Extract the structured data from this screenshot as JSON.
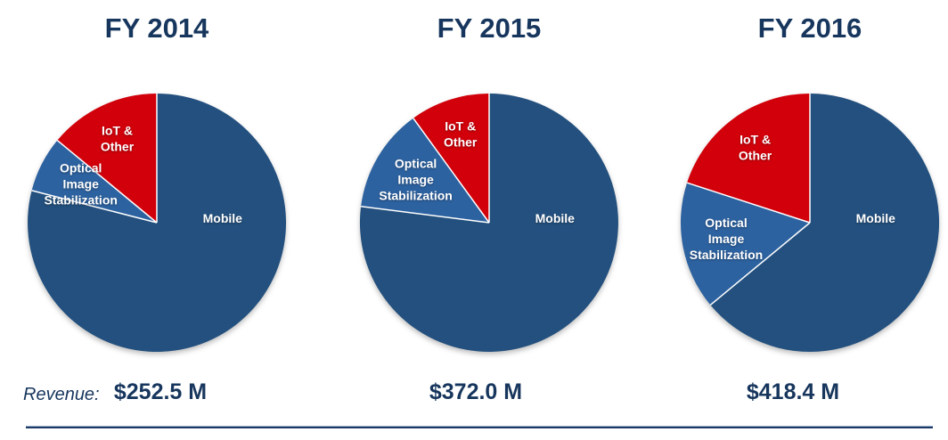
{
  "slide": {
    "revenue_caption": "Revenue:"
  },
  "colors": {
    "heading": "#17365d",
    "revenue_text": "#17365d",
    "slice_label": "#ffffff",
    "divider_dark": "#1c3a66",
    "divider_light": "#9db0cc"
  },
  "chart_data": [
    {
      "type": "pie",
      "title": "FY 2014",
      "categories": [
        "Mobile",
        "Optical Image Stabilization",
        "IoT & Other"
      ],
      "values": [
        79,
        7,
        14
      ],
      "unit": "% of total revenue, estimated from slice angles",
      "slice_colors": [
        "#23507e",
        "#2d62a0",
        "#d1000a"
      ],
      "display_labels": [
        "Mobile",
        "Optical\nImage\nStabilization",
        "IoT &\nOther"
      ],
      "legend_position": "labels inside slices",
      "revenue": "$252.5 M"
    },
    {
      "type": "pie",
      "title": "FY 2015",
      "categories": [
        "Mobile",
        "Optical Image Stabilization",
        "IoT & Other"
      ],
      "values": [
        77,
        13,
        10
      ],
      "unit": "% of total revenue, estimated from slice angles",
      "slice_colors": [
        "#23507e",
        "#2d62a0",
        "#d1000a"
      ],
      "display_labels": [
        "Mobile",
        "Optical\nImage\nStabilization",
        "IoT &\nOther"
      ],
      "legend_position": "labels inside slices",
      "revenue": "$372.0 M"
    },
    {
      "type": "pie",
      "title": "FY 2016",
      "categories": [
        "Mobile",
        "Optical Image Stabilization",
        "IoT & Other"
      ],
      "values": [
        64,
        16,
        20
      ],
      "unit": "% of total revenue, estimated from slice angles",
      "slice_colors": [
        "#23507e",
        "#2d62a0",
        "#d1000a"
      ],
      "display_labels": [
        "Mobile",
        "Optical\nImage\nStabilization",
        "IoT &\nOther"
      ],
      "legend_position": "labels inside slices",
      "revenue": "$418.4 M"
    }
  ]
}
